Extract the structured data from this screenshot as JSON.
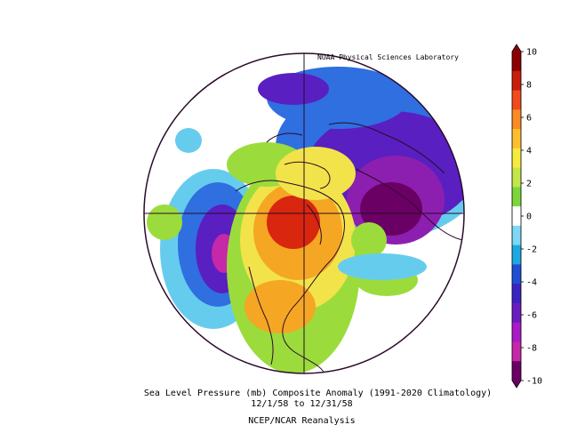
{
  "credit": "NOAA Physical Sciences Laboratory",
  "caption": {
    "line1": "Sea Level Pressure (mb) Composite Anomaly (1991-2020 Climatology)",
    "line2": "12/1/58  to 12/31/58",
    "line3": "NCEP/NCAR Reanalysis"
  },
  "colorbar": {
    "ticks": [
      "10",
      "8",
      "6",
      "4",
      "2",
      "0",
      "-2",
      "-4",
      "-6",
      "-8",
      "-10"
    ],
    "colors": [
      "#8b0000",
      "#c81e0a",
      "#f24a1c",
      "#fb8a23",
      "#fdbf2f",
      "#f6ea3e",
      "#c3e64b",
      "#7cd63a",
      "#ffffff",
      "#7dd8f5",
      "#1ea8e0",
      "#1f4fd4",
      "#3a23c0",
      "#6a1cc0",
      "#a81bc7",
      "#c528a8",
      "#6b0064"
    ]
  },
  "map": {
    "projection": "polar-stereographic",
    "colors": {
      "ocean_neutral": "#ffffff",
      "coast": "#2a0a2a",
      "high_strong": "#d8260f",
      "high_mid": "#f5a623",
      "high_weak": "#f2e34b",
      "pos_small": "#9bdc3c",
      "neg_small": "#66ccee",
      "neg_mid": "#2f6fe0",
      "neg_strong": "#5a1fc0",
      "neg_extreme": "#6b0064"
    }
  }
}
